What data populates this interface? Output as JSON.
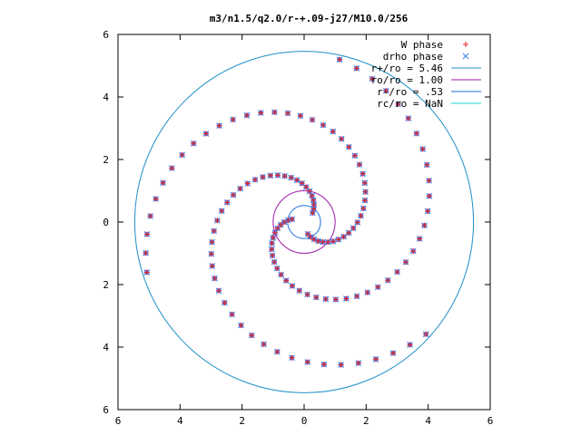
{
  "chart_data": {
    "type": "scatter",
    "title": "m3/n1.5/q2.0/r-+.09-j27/M10.0/256",
    "xlabel": "",
    "ylabel": "",
    "xlim": [
      -6,
      6
    ],
    "ylim": [
      -6,
      6
    ],
    "x_ticks": [
      -6,
      -4,
      -2,
      0,
      2,
      4,
      6
    ],
    "y_ticks": [
      -6,
      -4,
      -2,
      0,
      2,
      4,
      6
    ],
    "x_tick_labels": [
      "6",
      "4",
      "2",
      "0",
      "2",
      "4",
      "6"
    ],
    "y_tick_labels": [
      "6",
      "4",
      "2",
      "0",
      "2",
      "4",
      "6"
    ],
    "grid": false,
    "legend_position": "top-right",
    "legend": [
      {
        "label": "W phase",
        "symbol": "+",
        "color": "#e8201a"
      },
      {
        "label": "drho phase",
        "symbol": "x",
        "color": "#2f7fe0"
      },
      {
        "label": "r+/ro = 5.46",
        "symbol": "line",
        "color": "#1f8fc8"
      },
      {
        "label": "ro/ro = 1.00",
        "symbol": "line",
        "color": "#a01aa8"
      },
      {
        "label": "r-/ro = .53",
        "symbol": "line",
        "color": "#1f6fe0"
      },
      {
        "label": "rc/ro = NaN",
        "symbol": "line",
        "color": "#18d0d8"
      }
    ],
    "circles": [
      {
        "name": "r+/ro = 5.46",
        "radius": 5.46,
        "color": "#1f8fc8"
      },
      {
        "name": "ro/ro = 1.00",
        "radius": 1.0,
        "color": "#a01aa8"
      },
      {
        "name": "r-/ro = .53",
        "radius": 0.53,
        "color": "#1f6fe0"
      }
    ],
    "series": [
      {
        "name": "W phase",
        "marker": "+",
        "color": "#e8201a",
        "spiral": {
          "arms": 3,
          "r_min": 0.4,
          "r_max": 5.4,
          "pitch_deg_per_unit_r": 55,
          "theta0_deg": [
            25,
            145,
            265
          ]
        }
      },
      {
        "name": "drho phase",
        "marker": "x",
        "color": "#2f7fe0",
        "spiral": {
          "arms": 3,
          "r_min": 0.4,
          "r_max": 5.4,
          "pitch_deg_per_unit_r": 55,
          "theta0_deg": [
            25,
            145,
            265
          ]
        }
      }
    ]
  }
}
